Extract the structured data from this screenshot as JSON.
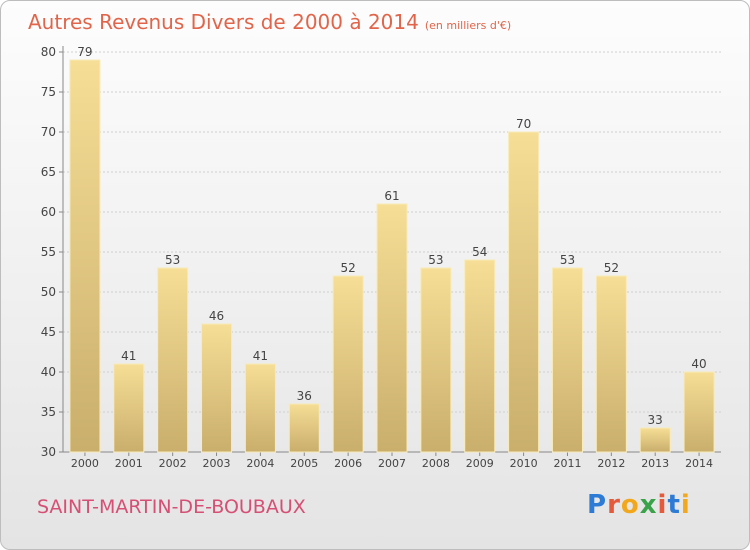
{
  "header": {
    "title": "Autres Revenus Divers de 2000 à 2014",
    "unit": "(en milliers d'€)"
  },
  "footer": {
    "commune": "SAINT-MARTIN-DE-BOUBAUX",
    "logo_letters": [
      "P",
      "r",
      "o",
      "x",
      "i",
      "t",
      "i"
    ],
    "logo_colors": [
      "#2e7bd6",
      "#e45a3a",
      "#f2a81d",
      "#3aa34a",
      "#e45a3a",
      "#2e7bd6",
      "#f2a81d"
    ]
  },
  "chart_data": {
    "type": "bar",
    "categories": [
      "2000",
      "2001",
      "2002",
      "2003",
      "2004",
      "2005",
      "2006",
      "2007",
      "2008",
      "2009",
      "2010",
      "2011",
      "2012",
      "2013",
      "2014"
    ],
    "values": [
      79,
      41,
      53,
      46,
      41,
      36,
      52,
      61,
      53,
      54,
      70,
      53,
      52,
      33,
      40
    ],
    "ylim": [
      30,
      80
    ],
    "yticks": [
      30,
      35,
      40,
      45,
      50,
      55,
      60,
      65,
      70,
      75,
      80
    ],
    "grid": true,
    "bar_color": "#e7cf8a"
  }
}
